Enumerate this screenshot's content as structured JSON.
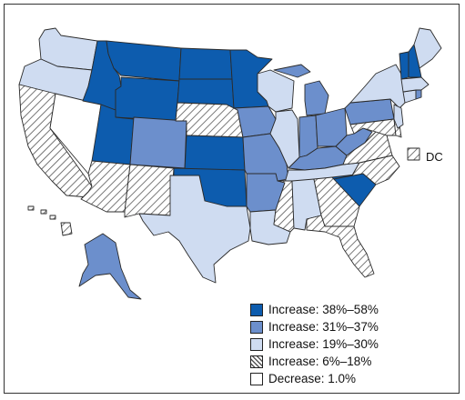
{
  "colors": {
    "cat1": "#0d5cae",
    "cat2": "#6c8fcc",
    "cat3": "#cfdcf1",
    "cat4": "#ffffff",
    "cat5": "#ffffff",
    "hatch": "#555555",
    "stroke": "#2b2b2b"
  },
  "legend": [
    {
      "label": "Increase: 38%–58%",
      "category": "cat1"
    },
    {
      "label": "Increase: 31%–37%",
      "category": "cat2"
    },
    {
      "label": "Increase: 19%–30%",
      "category": "cat3"
    },
    {
      "label": "Increase: 6%–18%",
      "category": "cat4"
    },
    {
      "label": "Decrease: 1.0%",
      "category": "cat5"
    }
  ],
  "dc": {
    "label": "DC",
    "category": "cat4"
  },
  "states": {
    "WA": "cat3",
    "OR": "cat3",
    "CA": "cat4",
    "NV": "cat5",
    "ID": "cat1",
    "MT": "cat1",
    "WY": "cat1",
    "UT": "cat1",
    "AZ": "cat4",
    "CO": "cat2",
    "NM": "cat4",
    "ND": "cat1",
    "SD": "cat1",
    "NE": "cat4",
    "KS": "cat1",
    "OK": "cat1",
    "TX": "cat3",
    "MN": "cat1",
    "IA": "cat2",
    "MO": "cat2",
    "AR": "cat2",
    "LA": "cat3",
    "WI": "cat3",
    "IL": "cat3",
    "MI": "cat2",
    "IN": "cat2",
    "OH": "cat2",
    "KY": "cat2",
    "TN": "cat3",
    "MS": "cat4",
    "AL": "cat3",
    "GA": "cat4",
    "FL": "cat4",
    "SC": "cat1",
    "NC": "cat4",
    "VA": "cat4",
    "WV": "cat2",
    "PA": "cat2",
    "NY": "cat3",
    "VT": "cat1",
    "NH": "cat1",
    "ME": "cat3",
    "MA": "cat3",
    "RI": "cat2",
    "CT": "cat3",
    "NJ": "cat3",
    "DE": "cat4",
    "MD": "cat4",
    "AK": "cat2",
    "HI": "cat4"
  }
}
